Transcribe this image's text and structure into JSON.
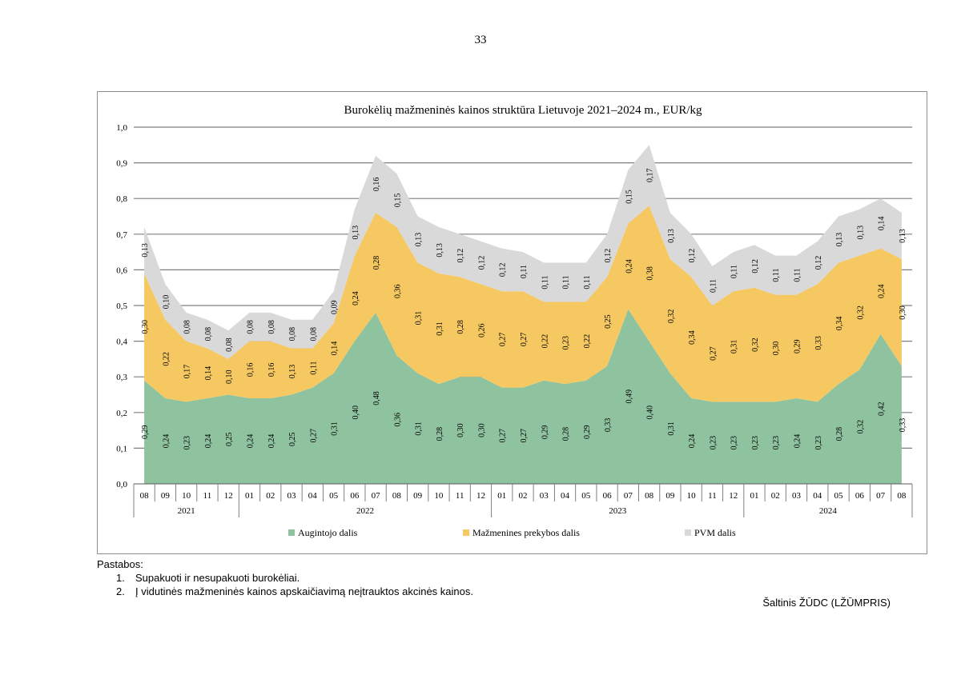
{
  "page": {
    "number": "33"
  },
  "notes": {
    "title": "Pastabos:",
    "items": [
      {
        "num": "1.",
        "text": "Supakuoti ir nesupakuoti burokėliai."
      },
      {
        "num": "2.",
        "text": "Į vidutinės mažmeninės kainos apskaičiavimą neįtrauktos akcinės kainos."
      }
    ]
  },
  "source": "Šaltinis ŽŪDC (LŽŪMPRIS)",
  "colors": {
    "augintojo": "#8fc3a0",
    "mazmenines": "#f5c862",
    "pvm": "#d9d9d9",
    "grid": "#7f7f7f"
  },
  "chart_data": {
    "type": "area",
    "stacked": true,
    "title": "Burokėlių mažmeninės kainos struktūra Lietuvoje 2021–2024 m., EUR/kg",
    "xlabel": "",
    "ylabel": "",
    "ylim": [
      0,
      1.0
    ],
    "yticks": [
      "0,0",
      "0,1",
      "0,2",
      "0,3",
      "0,4",
      "0,5",
      "0,6",
      "0,7",
      "0,8",
      "0,9",
      "1,0"
    ],
    "months": [
      "08",
      "09",
      "10",
      "11",
      "12",
      "01",
      "02",
      "03",
      "04",
      "05",
      "06",
      "07",
      "08",
      "09",
      "10",
      "11",
      "12",
      "01",
      "02",
      "03",
      "04",
      "05",
      "06",
      "07",
      "08",
      "09",
      "10",
      "11",
      "12",
      "01",
      "02",
      "03",
      "04",
      "05",
      "06",
      "07",
      "08"
    ],
    "years": [
      {
        "label": "2021",
        "count": 5
      },
      {
        "label": "2022",
        "count": 12
      },
      {
        "label": "2023",
        "count": 12
      },
      {
        "label": "2024",
        "count": 8
      }
    ],
    "legend": {
      "position": "bottom"
    },
    "series": [
      {
        "name": "Augintojo dalis",
        "key": "augintojo",
        "values": [
          0.29,
          0.24,
          0.23,
          0.24,
          0.25,
          0.24,
          0.24,
          0.25,
          0.27,
          0.31,
          0.4,
          0.48,
          0.36,
          0.31,
          0.28,
          0.3,
          0.3,
          0.27,
          0.27,
          0.29,
          0.28,
          0.29,
          0.33,
          0.49,
          0.4,
          0.31,
          0.24,
          0.23,
          0.23,
          0.23,
          0.23,
          0.24,
          0.23,
          0.28,
          0.32,
          0.42,
          0.33
        ],
        "labels": [
          "0,29",
          "0,24",
          "0,23",
          "0,24",
          "0,25",
          "0,24",
          "0,24",
          "0,25",
          "0,27",
          "0,31",
          "0,40",
          "0,48",
          "0,36",
          "0,31",
          "0,28",
          "0,30",
          "0,30",
          "0,27",
          "0,27",
          "0,29",
          "0,28",
          "0,29",
          "0,33",
          "0,49",
          "0,40",
          "0,31",
          "0,24",
          "0,23",
          "0,23",
          "0,23",
          "0,23",
          "0,24",
          "0,23",
          "0,28",
          "0,32",
          "0,42",
          "0,33"
        ]
      },
      {
        "name": "Mažmenines prekybos dalis",
        "key": "mazmenines",
        "values": [
          0.3,
          0.22,
          0.17,
          0.14,
          0.1,
          0.16,
          0.16,
          0.13,
          0.11,
          0.14,
          0.24,
          0.28,
          0.36,
          0.31,
          0.31,
          0.28,
          0.26,
          0.27,
          0.27,
          0.22,
          0.23,
          0.22,
          0.25,
          0.24,
          0.38,
          0.32,
          0.34,
          0.27,
          0.31,
          0.32,
          0.3,
          0.29,
          0.33,
          0.34,
          0.32,
          0.24,
          0.3
        ],
        "labels": [
          "0,30",
          "0,22",
          "0,17",
          "0,14",
          "0,10",
          "0,16",
          "0,16",
          "0,13",
          "0,11",
          "0,14",
          "0,24",
          "0,28",
          "0,36",
          "0,31",
          "0,31",
          "0,28",
          "0,26",
          "0,27",
          "0,27",
          "0,22",
          "0,23",
          "0,22",
          "0,25",
          "0,24",
          "0,38",
          "0,32",
          "0,34",
          "0,27",
          "0,31",
          "0,32",
          "0,30",
          "0,29",
          "0,33",
          "0,34",
          "0,32",
          "0,24",
          "0,30"
        ]
      },
      {
        "name": "PVM dalis",
        "key": "pvm",
        "values": [
          0.13,
          0.1,
          0.08,
          0.08,
          0.08,
          0.08,
          0.08,
          0.08,
          0.08,
          0.09,
          0.13,
          0.16,
          0.15,
          0.13,
          0.13,
          0.12,
          0.12,
          0.12,
          0.11,
          0.11,
          0.11,
          0.11,
          0.12,
          0.15,
          0.17,
          0.13,
          0.12,
          0.11,
          0.11,
          0.12,
          0.11,
          0.11,
          0.12,
          0.13,
          0.13,
          0.14,
          0.13
        ],
        "labels": [
          "0,13",
          "0,10",
          "0,08",
          "0,08",
          "0,08",
          "0,08",
          "0,08",
          "0,08",
          "0,08",
          "0,09",
          "0,13",
          "0,16",
          "0,15",
          "0,13",
          "0,13",
          "0,12",
          "0,12",
          "0,12",
          "0,11",
          "0,11",
          "0,11",
          "0,11",
          "0,12",
          "0,15",
          "0,17",
          "0,13",
          "0,12",
          "0,11",
          "0,11",
          "0,12",
          "0,11",
          "0,11",
          "0,12",
          "0,13",
          "0,13",
          "0,14",
          "0,13"
        ]
      }
    ]
  }
}
